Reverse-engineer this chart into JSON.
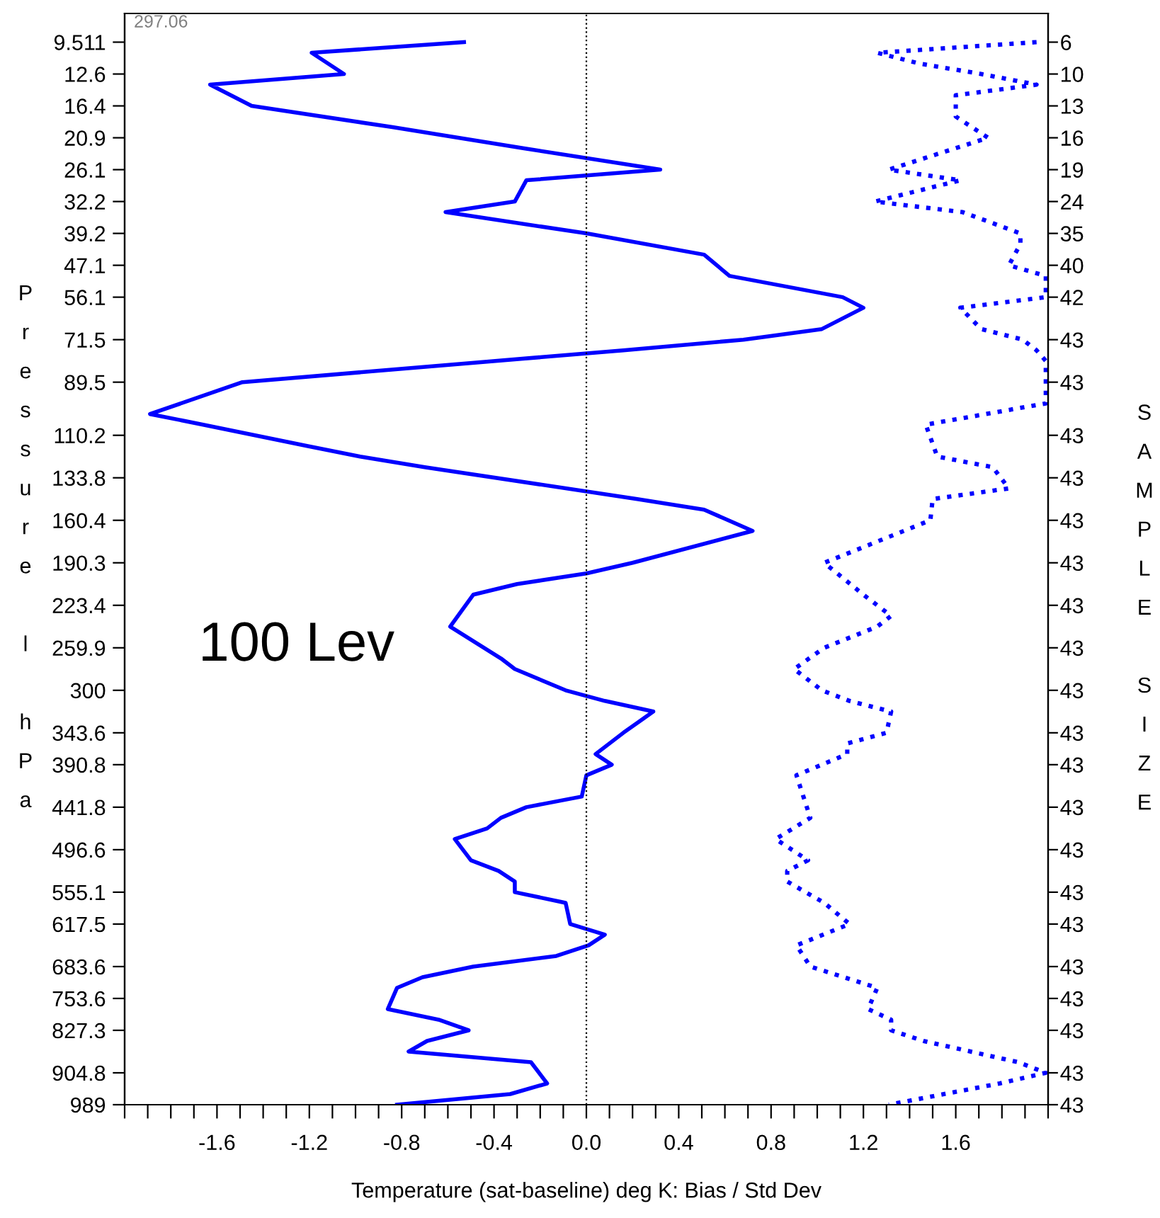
{
  "chart_data": {
    "type": "line",
    "orientation": "horizontal",
    "xlabel": "Temperature (sat-baseline) deg K: Bias / Std Dev",
    "ylabel": "Pressure l hPa",
    "y2label": "SAMPLE SIZE",
    "annotations": [
      "297.06",
      "100 Lev"
    ],
    "categories": [
      "9.511",
      null,
      null,
      "12.6",
      null,
      null,
      "16.4",
      null,
      null,
      "20.9",
      null,
      null,
      "26.1",
      null,
      null,
      "32.2",
      null,
      null,
      "39.2",
      null,
      null,
      "47.1",
      null,
      null,
      "56.1",
      null,
      null,
      null,
      "71.5",
      null,
      null,
      null,
      "89.5",
      null,
      null,
      null,
      null,
      "110.2",
      null,
      null,
      null,
      "133.8",
      null,
      null,
      null,
      "160.4",
      null,
      null,
      null,
      "190.3",
      null,
      null,
      null,
      "223.4",
      null,
      null,
      null,
      "259.9",
      null,
      null,
      null,
      "300",
      null,
      null,
      null,
      "343.6",
      null,
      null,
      "390.8",
      null,
      null,
      null,
      "441.8",
      null,
      null,
      null,
      "496.6",
      null,
      null,
      null,
      "555.1",
      null,
      null,
      "617.5",
      null,
      null,
      null,
      "683.6",
      null,
      null,
      "753.6",
      null,
      null,
      "827.3",
      null,
      null,
      null,
      "904.8",
      null,
      null,
      "989"
    ],
    "y2_categories": [
      "6",
      null,
      null,
      "10",
      null,
      null,
      "13",
      null,
      null,
      "16",
      null,
      null,
      "19",
      null,
      null,
      "24",
      null,
      null,
      "35",
      null,
      null,
      "40",
      null,
      null,
      "42",
      null,
      null,
      null,
      "43",
      null,
      null,
      null,
      "43",
      null,
      null,
      null,
      null,
      "43",
      null,
      null,
      null,
      "43",
      null,
      null,
      null,
      "43",
      null,
      null,
      null,
      "43",
      null,
      null,
      null,
      "43",
      null,
      null,
      null,
      "43",
      null,
      null,
      null,
      "43",
      null,
      null,
      null,
      "43",
      null,
      null,
      "43",
      null,
      null,
      null,
      "43",
      null,
      null,
      null,
      "43",
      null,
      null,
      null,
      "43",
      null,
      null,
      "43",
      null,
      null,
      null,
      "43",
      null,
      null,
      "43",
      null,
      null,
      "43",
      null,
      null,
      null,
      "43",
      null,
      null,
      "43"
    ],
    "xlim": [
      -2.0,
      2.0
    ],
    "xticks": [
      {
        "value": -2.0,
        "label": null
      },
      {
        "value": -1.9,
        "label": null
      },
      {
        "value": -1.8,
        "label": null
      },
      {
        "value": -1.7,
        "label": null
      },
      -1.6,
      {
        "value": -1.5,
        "label": null
      },
      {
        "value": -1.4,
        "label": null
      },
      {
        "value": -1.3,
        "label": null
      },
      -1.2,
      {
        "value": -1.1,
        "label": null
      },
      {
        "value": -1.0,
        "label": null
      },
      {
        "value": -0.9,
        "label": null
      },
      -0.8,
      {
        "value": -0.7,
        "label": null
      },
      {
        "value": -0.6,
        "label": null
      },
      {
        "value": -0.5,
        "label": null
      },
      -0.4,
      {
        "value": -0.3,
        "label": null
      },
      {
        "value": -0.2,
        "label": null
      },
      {
        "value": -0.1,
        "label": null
      },
      {
        "value": 0,
        "label": "0.0"
      },
      {
        "value": 0.1,
        "label": null
      },
      {
        "value": 0.2,
        "label": null
      },
      {
        "value": 0.3,
        "label": null
      },
      0.4,
      {
        "value": 0.5,
        "label": null
      },
      {
        "value": 0.6,
        "label": null
      },
      {
        "value": 0.7,
        "label": null
      },
      0.8,
      {
        "value": 0.9,
        "label": null
      },
      {
        "value": 1.0,
        "label": null
      },
      {
        "value": 1.1,
        "label": null
      },
      1.2,
      {
        "value": 1.3,
        "label": null
      },
      {
        "value": 1.4,
        "label": null
      },
      {
        "value": 1.5,
        "label": null
      },
      1.6,
      {
        "value": 1.7,
        "label": null
      },
      {
        "value": 1.8,
        "label": null
      },
      {
        "value": 1.9,
        "label": null
      },
      {
        "value": 2.0,
        "label": null
      }
    ],
    "ref_lines": [
      {
        "axis": "x",
        "value": 0,
        "color": "#000000",
        "line_style": "dotted"
      }
    ],
    "grid": false,
    "legend": false,
    "marker": "none",
    "series": [
      {
        "color": "#0000ff",
        "line_style": "solid",
        "values": [
          -0.53,
          -1.19,
          null,
          -1.05,
          -1.63,
          null,
          -1.45,
          null,
          -0.84,
          null,
          -0.27,
          null,
          0.32,
          -0.26,
          null,
          -0.31,
          -0.61,
          null,
          0.0,
          null,
          0.51,
          null,
          0.62,
          null,
          1.11,
          1.2,
          null,
          1.02,
          0.68,
          0.16,
          null,
          null,
          -1.49,
          null,
          null,
          -1.89,
          -1.66,
          null,
          -1.21,
          -0.98,
          -0.7,
          null,
          null,
          0.22,
          0.51,
          null,
          0.72,
          null,
          null,
          0.2,
          0.0,
          -0.3,
          -0.49,
          null,
          null,
          -0.59,
          null,
          null,
          -0.37,
          -0.31,
          null,
          -0.09,
          0.08,
          0.29,
          null,
          0.16,
          null,
          0.04,
          0.11,
          0.0,
          null,
          -0.02,
          -0.26,
          -0.37,
          -0.43,
          -0.57,
          null,
          -0.5,
          -0.38,
          -0.31,
          -0.31,
          -0.09,
          null,
          -0.07,
          0.08,
          0.01,
          -0.13,
          -0.49,
          -0.71,
          -0.82,
          null,
          -0.86,
          -0.64,
          -0.51,
          -0.69,
          -0.77,
          -0.24,
          null,
          -0.17,
          -0.33,
          -0.82
        ]
      },
      {
        "color": "#0000ff",
        "line_style": "dotted",
        "values": [
          1.95,
          1.26,
          1.44,
          1.71,
          1.95,
          1.6,
          null,
          1.6,
          null,
          1.74,
          null,
          null,
          1.31,
          1.62,
          null,
          1.25,
          1.63,
          null,
          1.88,
          1.88,
          null,
          1.83,
          1.99,
          null,
          1.99,
          1.62,
          null,
          1.71,
          1.89,
          1.95,
          1.99,
          null,
          null,
          null,
          1.99,
          null,
          1.47,
          null,
          null,
          1.52,
          1.76,
          null,
          1.83,
          1.5,
          null,
          1.49,
          null,
          null,
          null,
          1.03,
          null,
          null,
          1.2,
          null,
          1.32,
          1.26,
          null,
          1.03,
          null,
          0.9,
          null,
          1.02,
          1.14,
          1.32,
          null,
          1.3,
          1.13,
          1.13,
          null,
          0.91,
          null,
          null,
          null,
          0.97,
          null,
          0.82,
          null,
          0.96,
          0.87,
          0.87,
          null,
          1.03,
          null,
          1.14,
          null,
          0.91,
          null,
          0.97,
          null,
          1.26,
          null,
          1.22,
          1.32,
          1.32,
          1.46,
          null,
          1.87,
          1.99,
          1.79,
          null,
          1.31
        ]
      }
    ]
  }
}
